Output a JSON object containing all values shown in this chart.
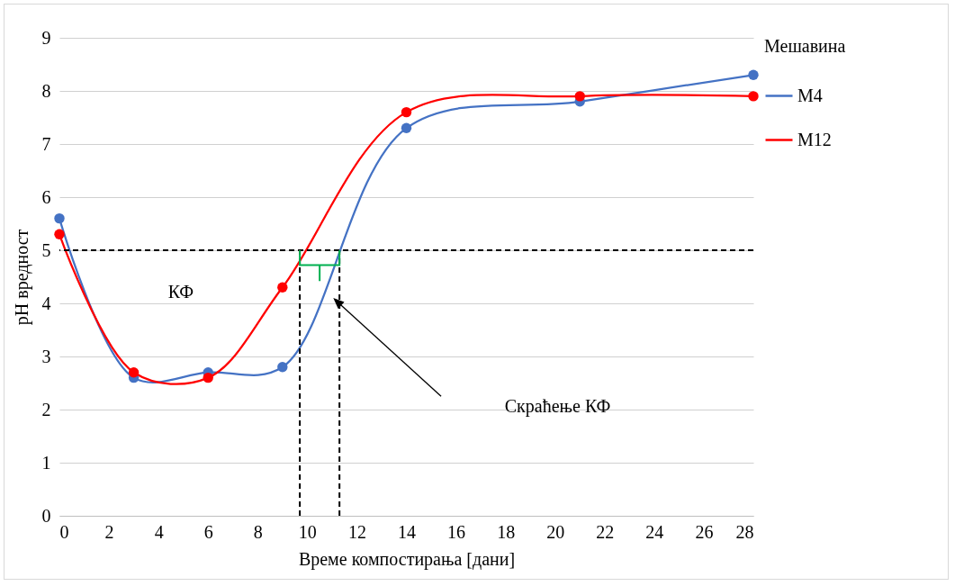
{
  "chart_data": {
    "type": "line",
    "xlabel": "Време компостирања [дани]",
    "ylabel": "pH вредност",
    "legend_title": "Мешавина",
    "x": [
      0,
      3,
      6,
      9,
      14,
      21,
      28
    ],
    "series": [
      {
        "name": "M4",
        "color": "#4472c4",
        "values": [
          5.6,
          2.6,
          2.7,
          2.8,
          7.3,
          7.8,
          8.3
        ]
      },
      {
        "name": "M12",
        "color": "#ff0000",
        "values": [
          5.3,
          2.7,
          2.6,
          4.3,
          7.6,
          7.9,
          7.9
        ]
      }
    ],
    "xlim": [
      0,
      28
    ],
    "xticks": [
      0,
      2,
      4,
      6,
      8,
      10,
      12,
      14,
      16,
      18,
      20,
      22,
      24,
      26,
      28
    ],
    "ylim": [
      0,
      9
    ],
    "yticks": [
      0,
      1,
      2,
      3,
      4,
      5,
      6,
      7,
      8,
      9
    ],
    "ref_lines": [
      {
        "axis": "y",
        "value": 5,
        "line_style": "dashed",
        "color": "#000000"
      },
      {
        "axis": "x",
        "value": 9.7,
        "line_style": "dashed",
        "color": "#000000"
      },
      {
        "axis": "x",
        "value": 11.3,
        "line_style": "dashed",
        "color": "#000000"
      }
    ],
    "annotations": [
      "КФ",
      "Скраћење КФ"
    ],
    "grid": "y",
    "legend": "right",
    "marker": "circle",
    "line_style": "solid"
  }
}
